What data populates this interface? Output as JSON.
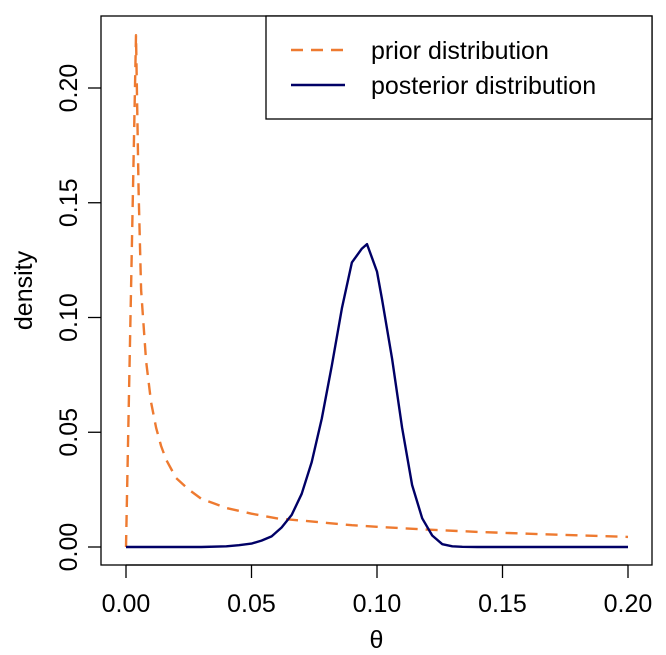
{
  "chart_data": {
    "type": "line",
    "title": "",
    "xlabel": "θ",
    "ylabel": "density",
    "xlim": [
      0.0,
      0.2
    ],
    "ylim": [
      0.0,
      0.22
    ],
    "x_ticks": [
      "0.00",
      "0.05",
      "0.10",
      "0.15",
      "0.20"
    ],
    "y_ticks": [
      "0.00",
      "0.05",
      "0.10",
      "0.15",
      "0.20"
    ],
    "grid": false,
    "legend_position": "top-right",
    "series": [
      {
        "name": "prior distribution",
        "style": "dashed",
        "color": "#EE7A30",
        "x": [
          0.0,
          0.004,
          0.005,
          0.006,
          0.008,
          0.01,
          0.012,
          0.014,
          0.016,
          0.018,
          0.02,
          0.025,
          0.03,
          0.035,
          0.04,
          0.05,
          0.06,
          0.07,
          0.08,
          0.09,
          0.1,
          0.12,
          0.14,
          0.16,
          0.18,
          0.2
        ],
        "y": [
          0.0,
          0.223,
          0.155,
          0.112,
          0.081,
          0.063,
          0.052,
          0.044,
          0.038,
          0.034,
          0.03,
          0.025,
          0.021,
          0.019,
          0.017,
          0.0145,
          0.0125,
          0.0115,
          0.0105,
          0.0095,
          0.0088,
          0.0076,
          0.0066,
          0.0058,
          0.0051,
          0.0044
        ]
      },
      {
        "name": "posterior distribution",
        "style": "solid",
        "color": "#000066",
        "x": [
          0.0,
          0.03,
          0.04,
          0.045,
          0.05,
          0.054,
          0.058,
          0.062,
          0.066,
          0.07,
          0.074,
          0.078,
          0.082,
          0.086,
          0.09,
          0.094,
          0.096,
          0.098,
          0.1,
          0.102,
          0.106,
          0.11,
          0.114,
          0.118,
          0.122,
          0.126,
          0.13,
          0.134,
          0.14,
          0.15,
          0.2
        ],
        "y": [
          0.0,
          0.0,
          0.0003,
          0.0008,
          0.0015,
          0.0028,
          0.0046,
          0.0085,
          0.014,
          0.0232,
          0.037,
          0.056,
          0.079,
          0.104,
          0.124,
          0.13,
          0.132,
          0.126,
          0.12,
          0.108,
          0.082,
          0.052,
          0.027,
          0.0125,
          0.005,
          0.0012,
          0.0003,
          0.0001,
          0.0,
          0.0,
          0.0
        ]
      }
    ]
  }
}
